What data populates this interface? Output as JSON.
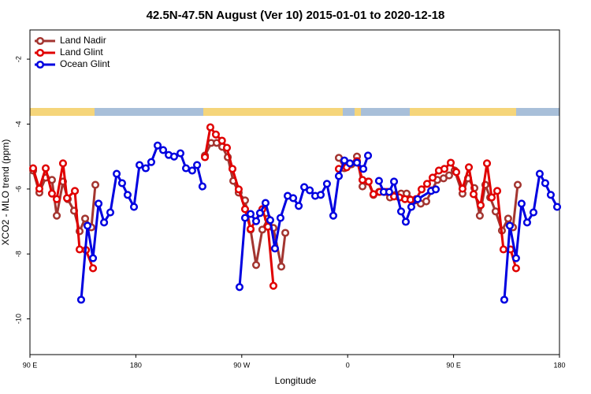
{
  "chart_data": {
    "type": "line",
    "title": "42.5N-47.5N August (Ver 10)   2015-01-01 to 2020-12-18",
    "x_label": "Longitude",
    "y_label": "XCO2 - MLO trend (ppm)",
    "xlim": [
      90,
      540
    ],
    "xticks": [
      {
        "value": 90,
        "label": "90 E"
      },
      180,
      {
        "value": 270,
        "label": "90 W"
      },
      {
        "value": 360,
        "label": "0"
      },
      {
        "value": 450,
        "label": "90 E"
      },
      {
        "value": 540,
        "label": "180"
      }
    ],
    "ylim": [
      -11.1,
      -1.1
    ],
    "yticks": [
      -10,
      -8,
      -6,
      -4,
      -2
    ],
    "legend": "top-left",
    "series": [
      {
        "name": "Land Nadir",
        "color": "#a33530",
        "x": [
          92.7,
          98.0,
          103.4,
          108.7,
          112.8,
          118.1,
          122.1,
          127.5,
          132.2,
          136.9,
          142.2,
          145.6,
          null,
          238.7,
          244.0,
          248.7,
          253.4,
          258.1,
          262.8,
          267.4,
          272.8,
          277.5,
          282.2,
          287.5,
          292.2,
          296.9,
          303.6,
          307.0,
          null,
          352.5,
          357.2,
          363.2,
          367.9,
          372.6,
          377.3,
          381.9,
          386.6,
          391.3,
          396.0,
          400.7,
          405.4,
          410.1,
          417.4,
          422.1,
          426.8,
          431.5,
          436.2,
          441.5,
          446.2,
          450.9,
          457.6,
          462.3,
          467.7,
          472.3,
          477.0,
          481.1,
          485.7,
          491.1,
          496.4,
          500.5,
          504.5
        ],
        "values": [
          -5.43,
          -6.11,
          -5.65,
          -5.72,
          -6.82,
          -5.77,
          -6.31,
          -6.67,
          -7.3,
          -6.91,
          -7.18,
          -5.87,
          null,
          -4.97,
          -4.58,
          -4.58,
          -4.7,
          -5.02,
          -5.75,
          -6.11,
          -6.35,
          -7.25,
          -8.34,
          -7.25,
          -6.91,
          -7.2,
          -8.39,
          -7.35,
          null,
          -5.04,
          -5.36,
          -5.24,
          -5.0,
          -5.92,
          -5.77,
          -6.18,
          -6.09,
          -6.09,
          -6.26,
          -6.18,
          -6.14,
          -6.14,
          -6.35,
          -6.45,
          -6.38,
          -6.04,
          -5.72,
          -5.67,
          -5.58,
          -5.43,
          -6.14,
          -5.67,
          -5.97,
          -6.82,
          -5.87,
          -6.26,
          -6.69,
          -7.28,
          -6.91,
          -7.18,
          -5.87
        ]
      },
      {
        "name": "Land Glint",
        "color": "#e00000",
        "x": [
          92.7,
          98.0,
          103.4,
          108.7,
          112.8,
          118.1,
          121.5,
          128.2,
          132.2,
          137.6,
          143.6,
          null,
          238.7,
          243.3,
          248.0,
          253.2,
          257.4,
          262.1,
          267.4,
          272.8,
          277.5,
          287.5,
          292.2,
          296.9,
          null,
          352.5,
          359.2,
          367.9,
          372.6,
          377.9,
          381.9,
          387.3,
          393.3,
          399.4,
          404.0,
          408.7,
          413.4,
          418.1,
          422.8,
          427.5,
          432.2,
          437.5,
          442.2,
          447.6,
          452.3,
          457.6,
          463.0,
          467.0,
          473.0,
          478.4,
          482.4,
          487.1,
          492.4,
          498.4,
          503.1
        ],
        "values": [
          -5.36,
          -5.99,
          -5.36,
          -6.14,
          -6.31,
          -5.21,
          -6.28,
          -6.06,
          -7.86,
          -7.88,
          -8.44,
          null,
          -5.02,
          -4.1,
          -4.32,
          -4.51,
          -4.73,
          -5.38,
          -6.01,
          -6.62,
          -7.23,
          -6.62,
          -7.16,
          -8.98,
          null,
          -5.38,
          -5.33,
          -5.14,
          -5.72,
          -5.77,
          -6.16,
          -6.09,
          -6.09,
          -6.23,
          -6.26,
          -6.31,
          -6.33,
          -6.31,
          -6.01,
          -5.84,
          -5.65,
          -5.43,
          -5.38,
          -5.19,
          -5.48,
          -5.99,
          -5.33,
          -6.16,
          -6.5,
          -5.21,
          -6.26,
          -6.06,
          -7.86,
          -7.86,
          -8.44
        ]
      },
      {
        "name": "Ocean Glint",
        "color": "#0000e0",
        "x": [
          133.5,
          138.9,
          143.6,
          148.3,
          153.0,
          158.3,
          163.7,
          168.3,
          173.0,
          178.4,
          183.1,
          188.4,
          193.1,
          198.5,
          203.2,
          207.9,
          212.5,
          217.9,
          222.6,
          227.9,
          232.0,
          236.6,
          null,
          268.1,
          272.8,
          277.5,
          282.2,
          285.5,
          290.2,
          294.2,
          298.2,
          302.9,
          309.0,
          313.7,
          318.4,
          323.1,
          327.8,
          332.4,
          337.1,
          342.4,
          347.8,
          352.5,
          357.2,
          361.9,
          367.9,
          373.3,
          377.3,
          null,
          386.6,
          390.6,
          395.3,
          399.4,
          405.4,
          409.4,
          414.1,
          419.5,
          430.9,
          434.9,
          null,
          493.1,
          497.8,
          503.1,
          507.8,
          512.5,
          517.9,
          523.2,
          527.9,
          532.6,
          538.0
        ],
        "values": [
          -9.41,
          -7.13,
          -8.13,
          -6.45,
          -7.03,
          -6.72,
          -5.53,
          -5.82,
          -6.18,
          -6.55,
          -5.26,
          -5.36,
          -5.17,
          -4.66,
          -4.8,
          -4.95,
          -5.0,
          -4.9,
          -5.36,
          -5.43,
          -5.26,
          -5.92,
          null,
          -9.02,
          -6.89,
          -6.77,
          -6.99,
          -6.74,
          -6.43,
          -6.96,
          -7.83,
          -6.89,
          -6.21,
          -6.28,
          -6.52,
          -5.94,
          -6.04,
          -6.21,
          -6.18,
          -5.84,
          -6.82,
          -5.6,
          -5.12,
          -5.21,
          -5.19,
          -5.38,
          -4.97,
          null,
          -5.75,
          -6.09,
          -6.09,
          -5.77,
          -6.69,
          -7.01,
          -6.55,
          -6.31,
          -6.06,
          -6.01,
          null,
          -9.41,
          -7.13,
          -8.13,
          -6.45,
          -7.03,
          -6.72,
          -5.53,
          -5.82,
          -6.18,
          -6.55
        ]
      }
    ]
  }
}
